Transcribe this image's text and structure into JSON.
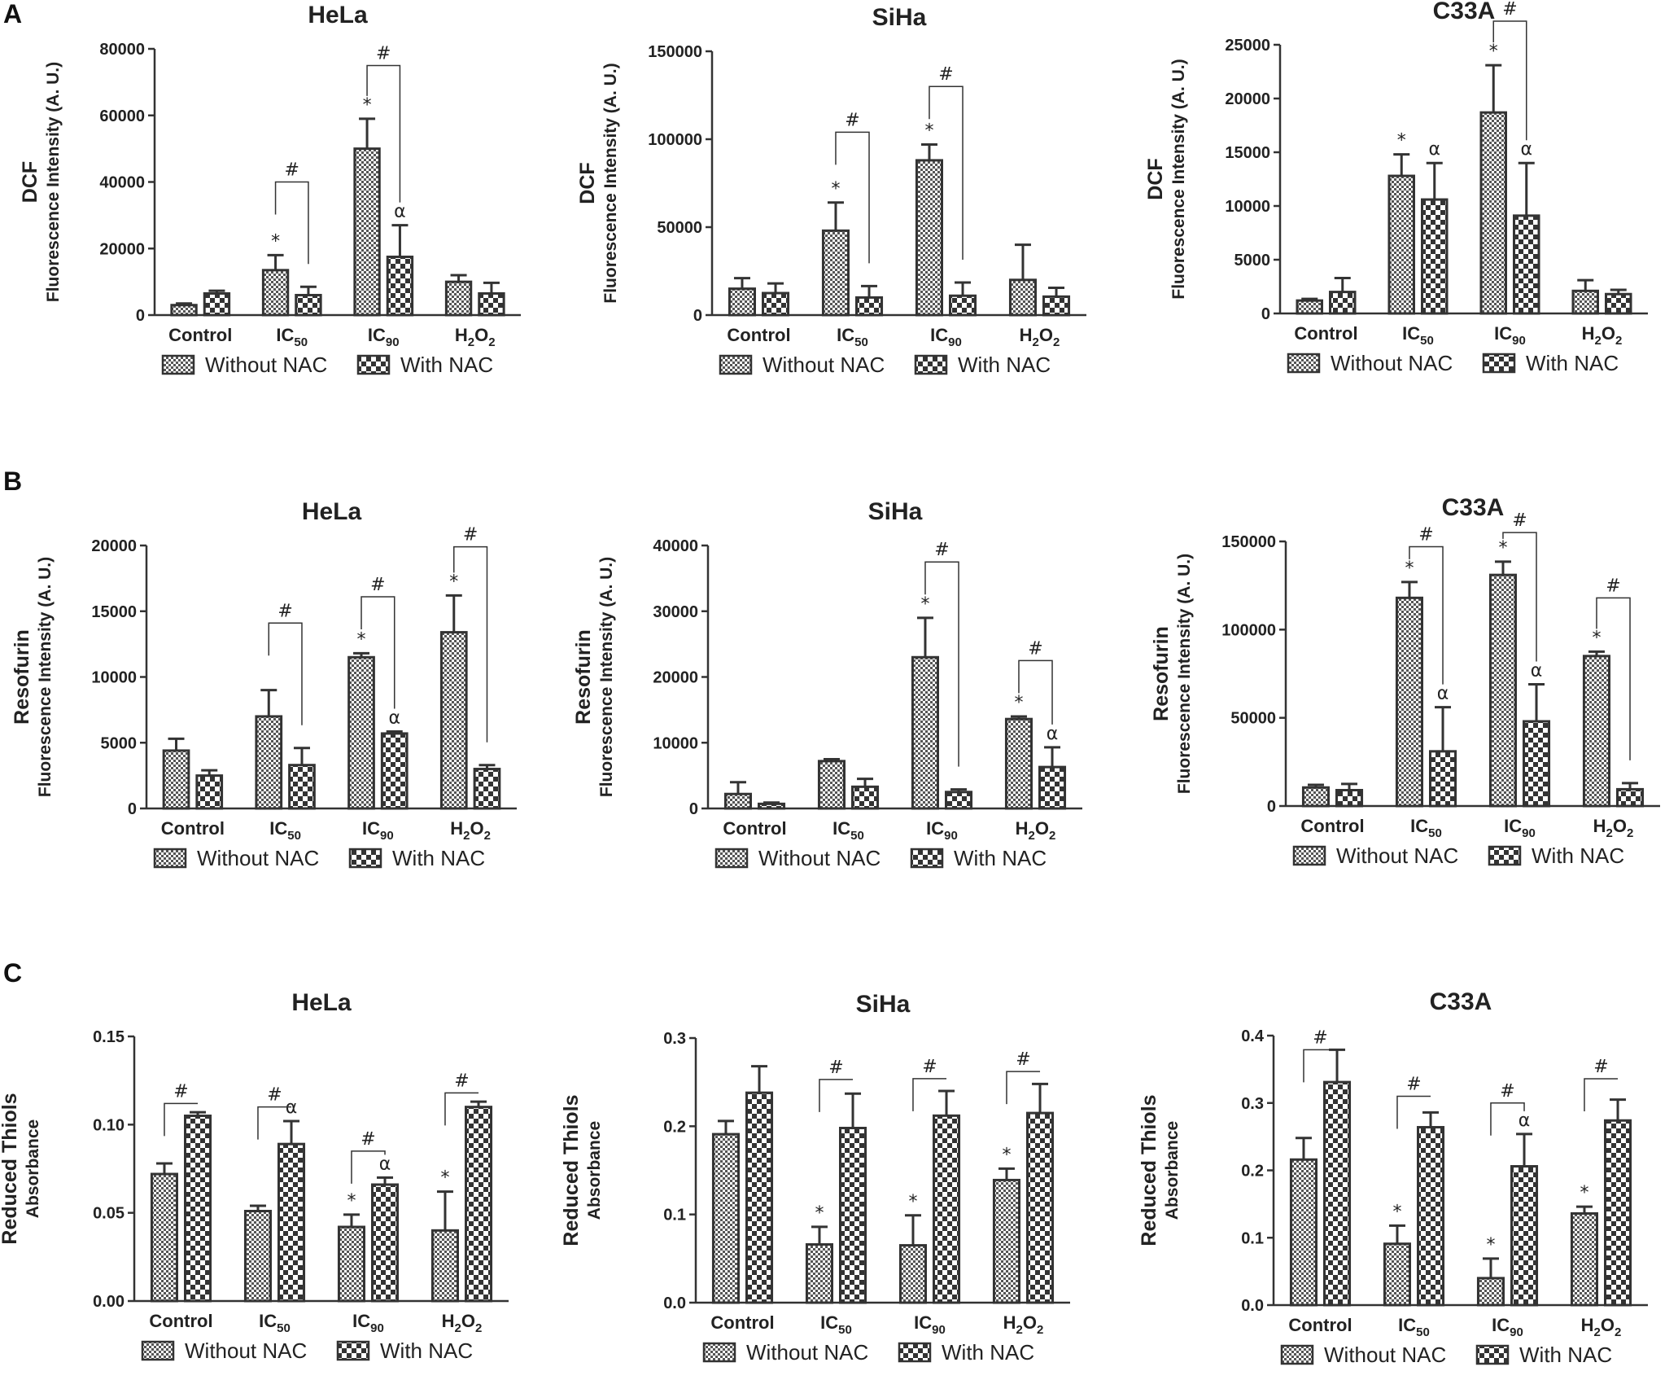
{
  "panels": [
    {
      "letter": "A"
    },
    {
      "letter": "B"
    },
    {
      "letter": "C"
    }
  ],
  "legend": {
    "without": "Without NAC",
    "with": "With NAC"
  },
  "categories": [
    "Control",
    "IC50",
    "IC90",
    "H2O2"
  ],
  "chart_data": [
    {
      "panel": "A",
      "type": "bar",
      "title": "HeLa",
      "ylabel": [
        "DCF",
        "Fluorescence Intensity (A. U.)"
      ],
      "categories": [
        "Control",
        "IC50",
        "IC90",
        "H2O2"
      ],
      "ylim": [
        0,
        80000
      ],
      "yticks": [
        0,
        20000,
        40000,
        60000,
        80000
      ],
      "series": [
        {
          "name": "Without NAC",
          "values": [
            3000,
            13500,
            50000,
            10000
          ],
          "errors": [
            500,
            4500,
            9000,
            2000
          ]
        },
        {
          "name": "With NAC",
          "values": [
            6500,
            6000,
            17500,
            6500
          ],
          "errors": [
            800,
            2500,
            9500,
            3200
          ]
        }
      ],
      "marks": [
        {
          "type": "star",
          "cat": 1,
          "series": 0
        },
        {
          "type": "star",
          "cat": 2,
          "series": 0
        },
        {
          "type": "alpha",
          "cat": 2,
          "series": 1
        },
        {
          "type": "hash",
          "cat": 1,
          "top": 40000
        },
        {
          "type": "hash",
          "cat": 2,
          "top": 75000
        }
      ]
    },
    {
      "panel": "A",
      "type": "bar",
      "title": "SiHa",
      "ylabel": [
        "DCF",
        "Fluorescence Intensity (A. U.)"
      ],
      "categories": [
        "Control",
        "IC50",
        "IC90",
        "H2O2"
      ],
      "ylim": [
        0,
        150000
      ],
      "yticks": [
        0,
        50000,
        100000,
        150000
      ],
      "series": [
        {
          "name": "Without NAC",
          "values": [
            15000,
            48000,
            88000,
            20000
          ],
          "errors": [
            6000,
            16000,
            9000,
            20000
          ]
        },
        {
          "name": "With NAC",
          "values": [
            12500,
            10000,
            11000,
            10500
          ],
          "errors": [
            5500,
            6500,
            7500,
            5000
          ]
        }
      ],
      "marks": [
        {
          "type": "star",
          "cat": 1,
          "series": 0
        },
        {
          "type": "star",
          "cat": 2,
          "series": 0
        },
        {
          "type": "hash",
          "cat": 1,
          "top": 104000
        },
        {
          "type": "hash",
          "cat": 2,
          "top": 130000
        }
      ]
    },
    {
      "panel": "A",
      "type": "bar",
      "title": "C33A",
      "ylabel": [
        "DCF",
        "Fluorescence Intensity (A. U.)"
      ],
      "categories": [
        "Control",
        "IC50",
        "IC90",
        "H2O2"
      ],
      "ylim": [
        0,
        25000
      ],
      "yticks": [
        0,
        5000,
        10000,
        15000,
        20000,
        25000
      ],
      "series": [
        {
          "name": "Without NAC",
          "values": [
            1200,
            12800,
            18700,
            2100
          ],
          "errors": [
            150,
            2000,
            4400,
            1000
          ]
        },
        {
          "name": "With NAC",
          "values": [
            2000,
            10600,
            9100,
            1800
          ],
          "errors": [
            1300,
            3400,
            4900,
            400
          ]
        }
      ],
      "marks": [
        {
          "type": "star",
          "cat": 1,
          "series": 0
        },
        {
          "type": "star",
          "cat": 2,
          "series": 0
        },
        {
          "type": "alpha",
          "cat": 1,
          "series": 1
        },
        {
          "type": "alpha",
          "cat": 2,
          "series": 1
        },
        {
          "type": "hash",
          "cat": 2,
          "top": 27200
        }
      ]
    },
    {
      "panel": "B",
      "type": "bar",
      "title": "HeLa",
      "ylabel": [
        "Resofurin",
        "Fluorescence Intensity (A. U.)"
      ],
      "categories": [
        "Control",
        "IC50",
        "IC90",
        "H2O2"
      ],
      "ylim": [
        0,
        20000
      ],
      "yticks": [
        0,
        5000,
        10000,
        15000,
        20000
      ],
      "series": [
        {
          "name": "Without NAC",
          "values": [
            4400,
            7000,
            11500,
            13400
          ],
          "errors": [
            900,
            2000,
            300,
            2800
          ]
        },
        {
          "name": "With NAC",
          "values": [
            2500,
            3300,
            5700,
            3000
          ],
          "errors": [
            400,
            1300,
            150,
            300
          ]
        }
      ],
      "marks": [
        {
          "type": "star",
          "cat": 2,
          "series": 0
        },
        {
          "type": "star",
          "cat": 3,
          "series": 0
        },
        {
          "type": "alpha",
          "cat": 2,
          "series": 1
        },
        {
          "type": "hash",
          "cat": 1,
          "top": 14100
        },
        {
          "type": "hash",
          "cat": 2,
          "top": 16100
        },
        {
          "type": "hash",
          "cat": 3,
          "top": 19900
        }
      ]
    },
    {
      "panel": "B",
      "type": "bar",
      "title": "SiHa",
      "ylabel": [
        "Resofurin",
        "Fluorescence Intensity (A. U.)"
      ],
      "categories": [
        "Control",
        "IC50",
        "IC90",
        "H2O2"
      ],
      "ylim": [
        0,
        40000
      ],
      "yticks": [
        0,
        10000,
        20000,
        30000,
        40000
      ],
      "series": [
        {
          "name": "Without NAC",
          "values": [
            2200,
            7200,
            23000,
            13600
          ],
          "errors": [
            1800,
            300,
            6000,
            400
          ]
        },
        {
          "name": "With NAC",
          "values": [
            700,
            3300,
            2500,
            6300
          ],
          "errors": [
            200,
            1200,
            400,
            3000
          ]
        }
      ],
      "marks": [
        {
          "type": "star",
          "cat": 2,
          "series": 0
        },
        {
          "type": "star",
          "cat": 3,
          "series": 0
        },
        {
          "type": "alpha",
          "cat": 3,
          "series": 1
        },
        {
          "type": "hash",
          "cat": 2,
          "top": 37500
        },
        {
          "type": "hash",
          "cat": 3,
          "top": 22500
        }
      ]
    },
    {
      "panel": "B",
      "type": "bar",
      "title": "C33A",
      "ylabel": [
        "Resofurin",
        "Fluorescence Intensity (A. U.)"
      ],
      "categories": [
        "Control",
        "IC50",
        "IC90",
        "H2O2"
      ],
      "ylim": [
        0,
        150000
      ],
      "yticks": [
        0,
        50000,
        100000,
        150000
      ],
      "series": [
        {
          "name": "Without NAC",
          "values": [
            10500,
            118000,
            131000,
            85000
          ],
          "errors": [
            1500,
            9000,
            7500,
            2500
          ]
        },
        {
          "name": "With NAC",
          "values": [
            9000,
            31000,
            48000,
            9500
          ],
          "errors": [
            3500,
            25000,
            21000,
            3500
          ]
        }
      ],
      "marks": [
        {
          "type": "star",
          "cat": 1,
          "series": 0
        },
        {
          "type": "star",
          "cat": 2,
          "series": 0
        },
        {
          "type": "star",
          "cat": 3,
          "series": 0
        },
        {
          "type": "alpha",
          "cat": 1,
          "series": 1
        },
        {
          "type": "alpha",
          "cat": 2,
          "series": 1
        },
        {
          "type": "hash",
          "cat": 1,
          "top": 147000
        },
        {
          "type": "hash",
          "cat": 2,
          "top": 155000
        },
        {
          "type": "hash",
          "cat": 3,
          "top": 118000
        }
      ]
    },
    {
      "panel": "C",
      "type": "bar",
      "title": "HeLa",
      "ylabel": [
        "Reduced Thiols",
        "Absorbance"
      ],
      "categories": [
        "Control",
        "IC50",
        "IC90",
        "H2O2"
      ],
      "ylim": [
        0,
        0.15
      ],
      "yticks": [
        0,
        0.05,
        0.1,
        0.15
      ],
      "yticklabels": [
        "0.00",
        "0.05",
        "0.10",
        "0.15"
      ],
      "series": [
        {
          "name": "Without NAC",
          "values": [
            0.072,
            0.051,
            0.042,
            0.04
          ],
          "errors": [
            0.006,
            0.003,
            0.007,
            0.022
          ]
        },
        {
          "name": "With NAC",
          "values": [
            0.105,
            0.089,
            0.066,
            0.11
          ],
          "errors": [
            0.002,
            0.013,
            0.004,
            0.003
          ]
        }
      ],
      "marks": [
        {
          "type": "star",
          "cat": 2,
          "series": 0
        },
        {
          "type": "star",
          "cat": 3,
          "series": 0
        },
        {
          "type": "alpha",
          "cat": 1,
          "series": 1
        },
        {
          "type": "alpha",
          "cat": 2,
          "series": 1
        },
        {
          "type": "hash",
          "cat": 0,
          "top": 0.112
        },
        {
          "type": "hash",
          "cat": 1,
          "top": 0.11
        },
        {
          "type": "hash",
          "cat": 2,
          "top": 0.085
        },
        {
          "type": "hash",
          "cat": 3,
          "top": 0.118
        }
      ]
    },
    {
      "panel": "C",
      "type": "bar",
      "title": "SiHa",
      "ylabel": [
        "Reduced Thiols",
        "Absorbance"
      ],
      "categories": [
        "Control",
        "IC50",
        "IC90",
        "H2O2"
      ],
      "ylim": [
        0,
        0.3
      ],
      "yticks": [
        0,
        0.1,
        0.2,
        0.3
      ],
      "yticklabels": [
        "0.0",
        "0.1",
        "0.2",
        "0.3"
      ],
      "series": [
        {
          "name": "Without NAC",
          "values": [
            0.191,
            0.066,
            0.065,
            0.139
          ],
          "errors": [
            0.015,
            0.02,
            0.034,
            0.013
          ]
        },
        {
          "name": "With NAC",
          "values": [
            0.238,
            0.198,
            0.212,
            0.215
          ],
          "errors": [
            0.03,
            0.039,
            0.028,
            0.033
          ]
        }
      ],
      "marks": [
        {
          "type": "star",
          "cat": 1,
          "series": 0
        },
        {
          "type": "star",
          "cat": 2,
          "series": 0
        },
        {
          "type": "star",
          "cat": 3,
          "series": 0
        },
        {
          "type": "hash",
          "cat": 1,
          "top": 0.253
        },
        {
          "type": "hash",
          "cat": 2,
          "top": 0.254
        },
        {
          "type": "hash",
          "cat": 3,
          "top": 0.262
        }
      ]
    },
    {
      "panel": "C",
      "type": "bar",
      "title": "C33A",
      "ylabel": [
        "Reduced Thiols",
        "Absorbance"
      ],
      "categories": [
        "Control",
        "IC50",
        "IC90",
        "H2O2"
      ],
      "ylim": [
        0,
        0.4
      ],
      "yticks": [
        0,
        0.1,
        0.2,
        0.3,
        0.4
      ],
      "yticklabels": [
        "0.0",
        "0.1",
        "0.2",
        "0.3",
        "0.4"
      ],
      "series": [
        {
          "name": "Without NAC",
          "values": [
            0.216,
            0.091,
            0.04,
            0.136
          ],
          "errors": [
            0.032,
            0.027,
            0.029,
            0.01
          ]
        },
        {
          "name": "With NAC",
          "values": [
            0.331,
            0.264,
            0.206,
            0.274
          ],
          "errors": [
            0.048,
            0.022,
            0.048,
            0.031
          ]
        }
      ],
      "marks": [
        {
          "type": "star",
          "cat": 1,
          "series": 0
        },
        {
          "type": "star",
          "cat": 2,
          "series": 0
        },
        {
          "type": "star",
          "cat": 3,
          "series": 0
        },
        {
          "type": "alpha",
          "cat": 2,
          "series": 1
        },
        {
          "type": "hash",
          "cat": 0,
          "top": 0.379
        },
        {
          "type": "hash",
          "cat": 1,
          "top": 0.31
        },
        {
          "type": "hash",
          "cat": 2,
          "top": 0.3
        },
        {
          "type": "hash",
          "cat": 3,
          "top": 0.336
        }
      ]
    }
  ]
}
